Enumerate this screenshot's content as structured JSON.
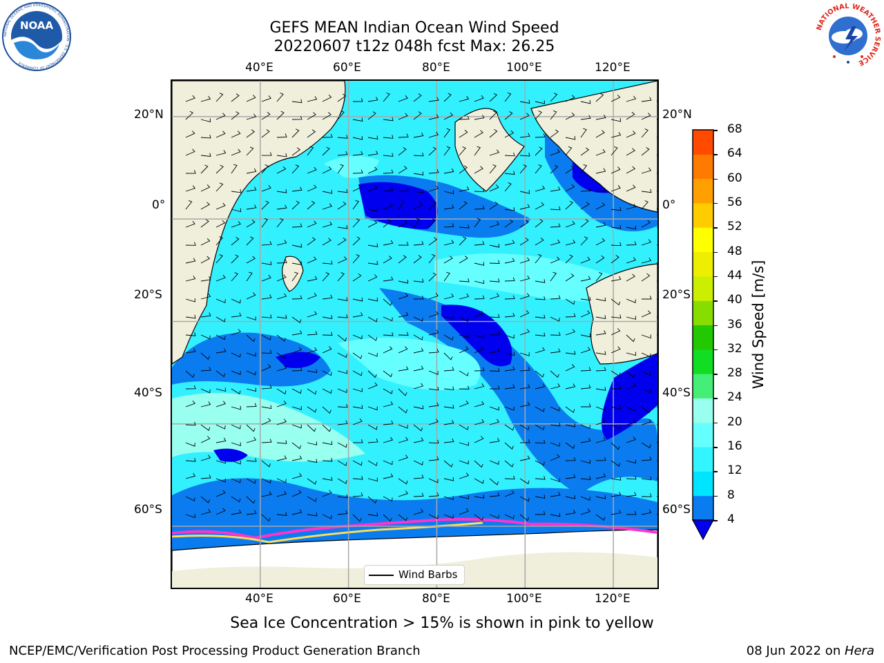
{
  "header": {
    "title_line1": "GEFS MEAN Indian Ocean Wind Speed",
    "title_line2": "20220607 t12z 048h fcst   Max: 26.25"
  },
  "logos": {
    "left": {
      "icon": "noaa-logo-icon",
      "text": "NOAA",
      "ring_text": "NATIONAL OCEANIC AND ATMOSPHERIC ADMINISTRATION · U.S. DEPARTMENT OF COMMERCE"
    },
    "right": {
      "icon": "nws-logo-icon",
      "ring_text": "NATIONAL WEATHER SERVICE"
    }
  },
  "map": {
    "lon_ticks_top": [
      "40°E",
      "60°E",
      "80°E",
      "100°E",
      "120°E"
    ],
    "lon_ticks_bottom": [
      "40°E",
      "60°E",
      "80°E",
      "100°E",
      "120°E"
    ],
    "lat_ticks_left": [
      "20°N",
      "0°",
      "20°S",
      "40°S",
      "60°S"
    ],
    "lat_ticks_right": [
      "20°N",
      "0°",
      "20°S",
      "40°S",
      "60°S"
    ],
    "lon_range": [
      20,
      130
    ],
    "lat_range": [
      -72,
      27
    ],
    "legend_label": "Wind Barbs",
    "colors": {
      "land": "#efefdc",
      "ice_edge_pink": "#ff33cc",
      "ice_yellow": "#ffdd55",
      "ice_white": "#ffffff"
    }
  },
  "colorbar": {
    "title": "Wind Speed [m/s]",
    "tick_labels": [
      "4",
      "8",
      "12",
      "16",
      "20",
      "24",
      "28",
      "32",
      "36",
      "40",
      "44",
      "48",
      "52",
      "56",
      "60",
      "64",
      "68"
    ],
    "colors": [
      "#0a7cf0",
      "#00e5ff",
      "#33f5ff",
      "#66ffff",
      "#99ffee",
      "#44ee77",
      "#11dd22",
      "#22c800",
      "#88dd00",
      "#ccee00",
      "#eeee00",
      "#ffff00",
      "#ffcc00",
      "#ffa000",
      "#ff7a00",
      "#ff4a00",
      "#ff1a00",
      "#ff0000"
    ],
    "under_color": "#0000ee"
  },
  "caption": "Sea Ice Concentration > 15% is shown in pink to yellow",
  "footer": {
    "left": "NCEP/EMC/Verification Post Processing Product Generation Branch",
    "right_prefix": "08 Jun 2022 on ",
    "right_host": "Hera"
  }
}
